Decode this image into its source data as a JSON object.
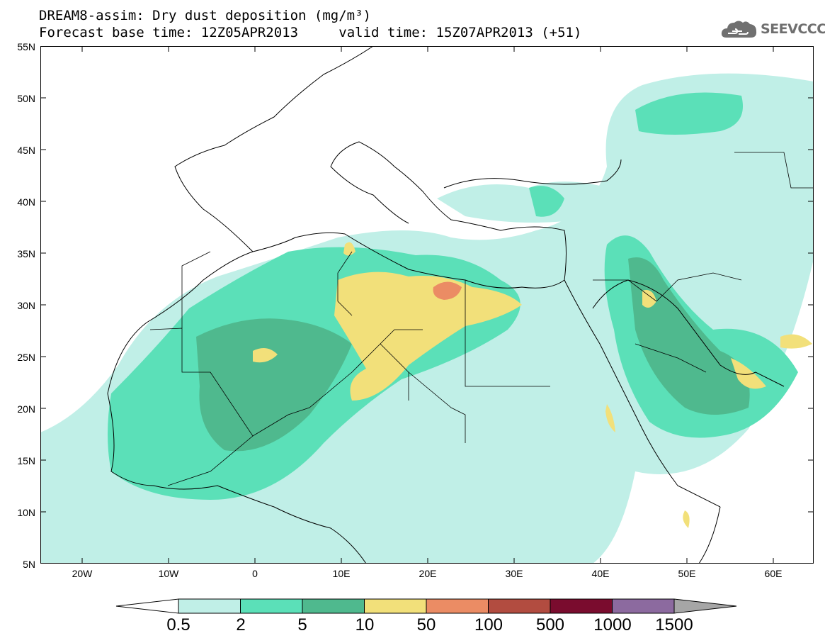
{
  "title_line1": "DREAM8-assim: Dry dust deposition (mg/m³)",
  "title_line2_base": "Forecast base time: 12Z05APR2013",
  "title_line2_valid": "valid time: 15Z07APR2013 (+51)",
  "logo_text": "SEEVCCC",
  "logo_icon": "cloud-icon",
  "lat_labels": [
    "55N",
    "50N",
    "45N",
    "40N",
    "35N",
    "30N",
    "25N",
    "20N",
    "15N",
    "10N",
    "5N"
  ],
  "lon_labels": [
    "20W",
    "10W",
    "0",
    "10E",
    "20E",
    "30E",
    "40E",
    "50E",
    "60E"
  ],
  "colorbar": {
    "labels": [
      "0.5",
      "2",
      "5",
      "10",
      "50",
      "100",
      "500",
      "1000",
      "1500"
    ],
    "colors": [
      "#ffffff",
      "#c0efe7",
      "#5be0b8",
      "#4fb98e",
      "#f2e07a",
      "#eb8c64",
      "#b24c40",
      "#7a0c2e",
      "#8c6a9f",
      "#a6a6a6"
    ]
  }
}
